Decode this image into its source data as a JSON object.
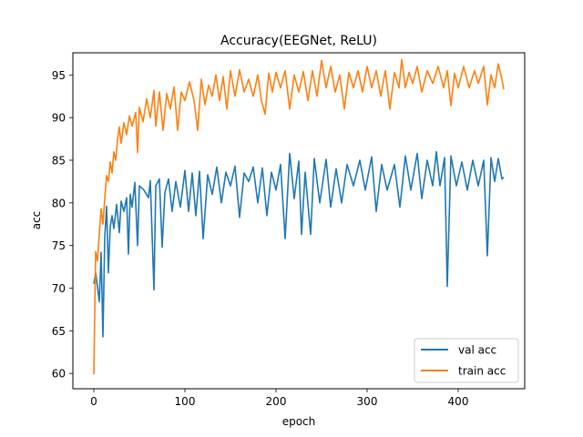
{
  "chart_data": {
    "type": "line",
    "title": "Accuracy(EEGNet, ReLU)",
    "xlabel": "epoch",
    "ylabel": "acc",
    "xlim": [
      -23,
      473
    ],
    "ylim": [
      58.2,
      97.6
    ],
    "xticks": [
      0,
      100,
      200,
      300,
      400
    ],
    "yticks": [
      60,
      65,
      70,
      75,
      80,
      85,
      90,
      95
    ],
    "grid": false,
    "legend_position": "lower right",
    "series": [
      {
        "name": "val acc",
        "color": "#1f77b4",
        "anchors": [
          [
            0,
            70.5
          ],
          [
            2,
            71.8
          ],
          [
            4,
            70.2
          ],
          [
            6,
            68.4
          ],
          [
            8,
            74.2
          ],
          [
            10,
            64.3
          ],
          [
            12,
            76.0
          ],
          [
            14,
            79.6
          ],
          [
            16,
            71.8
          ],
          [
            18,
            77.2
          ],
          [
            20,
            78.5
          ],
          [
            22,
            77.0
          ],
          [
            25,
            79.8
          ],
          [
            28,
            76.5
          ],
          [
            30,
            80.2
          ],
          [
            33,
            79.0
          ],
          [
            36,
            80.6
          ],
          [
            38,
            74.0
          ],
          [
            40,
            81.0
          ],
          [
            42,
            79.5
          ],
          [
            45,
            82.4
          ],
          [
            48,
            75.0
          ],
          [
            50,
            82.0
          ],
          [
            55,
            81.5
          ],
          [
            60,
            80.6
          ],
          [
            62,
            82.6
          ],
          [
            66,
            69.8
          ],
          [
            68,
            82.0
          ],
          [
            72,
            82.8
          ],
          [
            75,
            74.8
          ],
          [
            78,
            81.2
          ],
          [
            82,
            82.8
          ],
          [
            86,
            79.0
          ],
          [
            90,
            82.5
          ],
          [
            95,
            79.5
          ],
          [
            100,
            83.8
          ],
          [
            104,
            79.0
          ],
          [
            108,
            83.5
          ],
          [
            112,
            78.5
          ],
          [
            116,
            83.7
          ],
          [
            120,
            75.8
          ],
          [
            125,
            83.3
          ],
          [
            130,
            81.0
          ],
          [
            135,
            84.2
          ],
          [
            140,
            80.0
          ],
          [
            145,
            83.6
          ],
          [
            150,
            82.0
          ],
          [
            155,
            84.3
          ],
          [
            160,
            78.3
          ],
          [
            165,
            83.5
          ],
          [
            170,
            82.5
          ],
          [
            175,
            84.2
          ],
          [
            180,
            80.0
          ],
          [
            185,
            84.1
          ],
          [
            190,
            78.5
          ],
          [
            195,
            83.6
          ],
          [
            200,
            81.5
          ],
          [
            205,
            84.5
          ],
          [
            210,
            75.8
          ],
          [
            215,
            85.8
          ],
          [
            220,
            80.5
          ],
          [
            225,
            84.9
          ],
          [
            228,
            76.3
          ],
          [
            232,
            83.6
          ],
          [
            238,
            76.3
          ],
          [
            242,
            85.2
          ],
          [
            248,
            80.0
          ],
          [
            255,
            85.1
          ],
          [
            260,
            79.5
          ],
          [
            266,
            84.0
          ],
          [
            272,
            80.0
          ],
          [
            278,
            84.5
          ],
          [
            285,
            82.0
          ],
          [
            292,
            85.0
          ],
          [
            298,
            81.5
          ],
          [
            305,
            85.4
          ],
          [
            310,
            79.0
          ],
          [
            316,
            84.5
          ],
          [
            322,
            81.5
          ],
          [
            330,
            84.5
          ],
          [
            336,
            79.5
          ],
          [
            342,
            85.5
          ],
          [
            348,
            81.5
          ],
          [
            355,
            85.8
          ],
          [
            360,
            80.5
          ],
          [
            366,
            85.0
          ],
          [
            372,
            82.0
          ],
          [
            376,
            86.0
          ],
          [
            380,
            82.0
          ],
          [
            385,
            85.3
          ],
          [
            388,
            70.2
          ],
          [
            392,
            85.5
          ],
          [
            398,
            82.0
          ],
          [
            404,
            84.8
          ],
          [
            410,
            81.5
          ],
          [
            416,
            85.0
          ],
          [
            422,
            82.0
          ],
          [
            428,
            85.0
          ],
          [
            432,
            73.8
          ],
          [
            436,
            85.3
          ],
          [
            440,
            82.5
          ],
          [
            444,
            85.2
          ],
          [
            448,
            82.8
          ],
          [
            450,
            83.0
          ]
        ]
      },
      {
        "name": "train acc",
        "color": "#ff7f0e",
        "anchors": [
          [
            0,
            59.9
          ],
          [
            2,
            74.3
          ],
          [
            4,
            73.2
          ],
          [
            6,
            76.4
          ],
          [
            8,
            79.3
          ],
          [
            10,
            77.5
          ],
          [
            12,
            80.5
          ],
          [
            14,
            83.2
          ],
          [
            16,
            82.5
          ],
          [
            18,
            84.8
          ],
          [
            20,
            83.5
          ],
          [
            22,
            86.0
          ],
          [
            24,
            85.0
          ],
          [
            26,
            87.4
          ],
          [
            28,
            88.9
          ],
          [
            30,
            87.0
          ],
          [
            33,
            89.4
          ],
          [
            36,
            88.0
          ],
          [
            39,
            90.2
          ],
          [
            42,
            89.0
          ],
          [
            46,
            90.6
          ],
          [
            48,
            85.9
          ],
          [
            50,
            91.2
          ],
          [
            54,
            89.5
          ],
          [
            58,
            92.2
          ],
          [
            62,
            90.0
          ],
          [
            66,
            93.2
          ],
          [
            68,
            89.0
          ],
          [
            72,
            93.0
          ],
          [
            76,
            88.5
          ],
          [
            80,
            92.8
          ],
          [
            84,
            91.0
          ],
          [
            88,
            93.6
          ],
          [
            92,
            88.5
          ],
          [
            96,
            93.0
          ],
          [
            100,
            92.0
          ],
          [
            105,
            94.2
          ],
          [
            110,
            92.0
          ],
          [
            114,
            88.5
          ],
          [
            118,
            94.5
          ],
          [
            122,
            91.5
          ],
          [
            126,
            93.8
          ],
          [
            130,
            92.5
          ],
          [
            134,
            95.0
          ],
          [
            138,
            92.0
          ],
          [
            142,
            94.8
          ],
          [
            146,
            91.0
          ],
          [
            150,
            95.5
          ],
          [
            155,
            92.5
          ],
          [
            160,
            95.6
          ],
          [
            165,
            93.0
          ],
          [
            170,
            94.5
          ],
          [
            175,
            92.5
          ],
          [
            180,
            95.0
          ],
          [
            184,
            92.0
          ],
          [
            188,
            90.4
          ],
          [
            192,
            95.2
          ],
          [
            196,
            93.0
          ],
          [
            200,
            95.3
          ],
          [
            205,
            93.5
          ],
          [
            210,
            95.5
          ],
          [
            215,
            91.0
          ],
          [
            220,
            95.0
          ],
          [
            225,
            93.0
          ],
          [
            230,
            95.4
          ],
          [
            235,
            92.0
          ],
          [
            240,
            95.5
          ],
          [
            245,
            92.5
          ],
          [
            250,
            96.7
          ],
          [
            255,
            93.5
          ],
          [
            260,
            96.0
          ],
          [
            265,
            93.0
          ],
          [
            270,
            95.0
          ],
          [
            275,
            91.0
          ],
          [
            280,
            95.3
          ],
          [
            285,
            93.5
          ],
          [
            290,
            95.5
          ],
          [
            295,
            93.0
          ],
          [
            300,
            96.0
          ],
          [
            305,
            93.5
          ],
          [
            310,
            95.5
          ],
          [
            315,
            92.5
          ],
          [
            320,
            95.5
          ],
          [
            325,
            91.0
          ],
          [
            330,
            95.3
          ],
          [
            335,
            93.5
          ],
          [
            338,
            96.8
          ],
          [
            342,
            93.5
          ],
          [
            346,
            95.3
          ],
          [
            350,
            94.0
          ],
          [
            355,
            96.0
          ],
          [
            360,
            93.0
          ],
          [
            366,
            95.5
          ],
          [
            372,
            94.0
          ],
          [
            378,
            96.0
          ],
          [
            384,
            93.5
          ],
          [
            388,
            95.5
          ],
          [
            392,
            91.4
          ],
          [
            396,
            95.2
          ],
          [
            400,
            93.5
          ],
          [
            406,
            96.0
          ],
          [
            412,
            93.5
          ],
          [
            418,
            95.5
          ],
          [
            422,
            94.0
          ],
          [
            428,
            96.0
          ],
          [
            432,
            91.5
          ],
          [
            436,
            95.0
          ],
          [
            440,
            93.5
          ],
          [
            444,
            96.3
          ],
          [
            448,
            94.5
          ],
          [
            450,
            93.3
          ]
        ]
      }
    ]
  }
}
